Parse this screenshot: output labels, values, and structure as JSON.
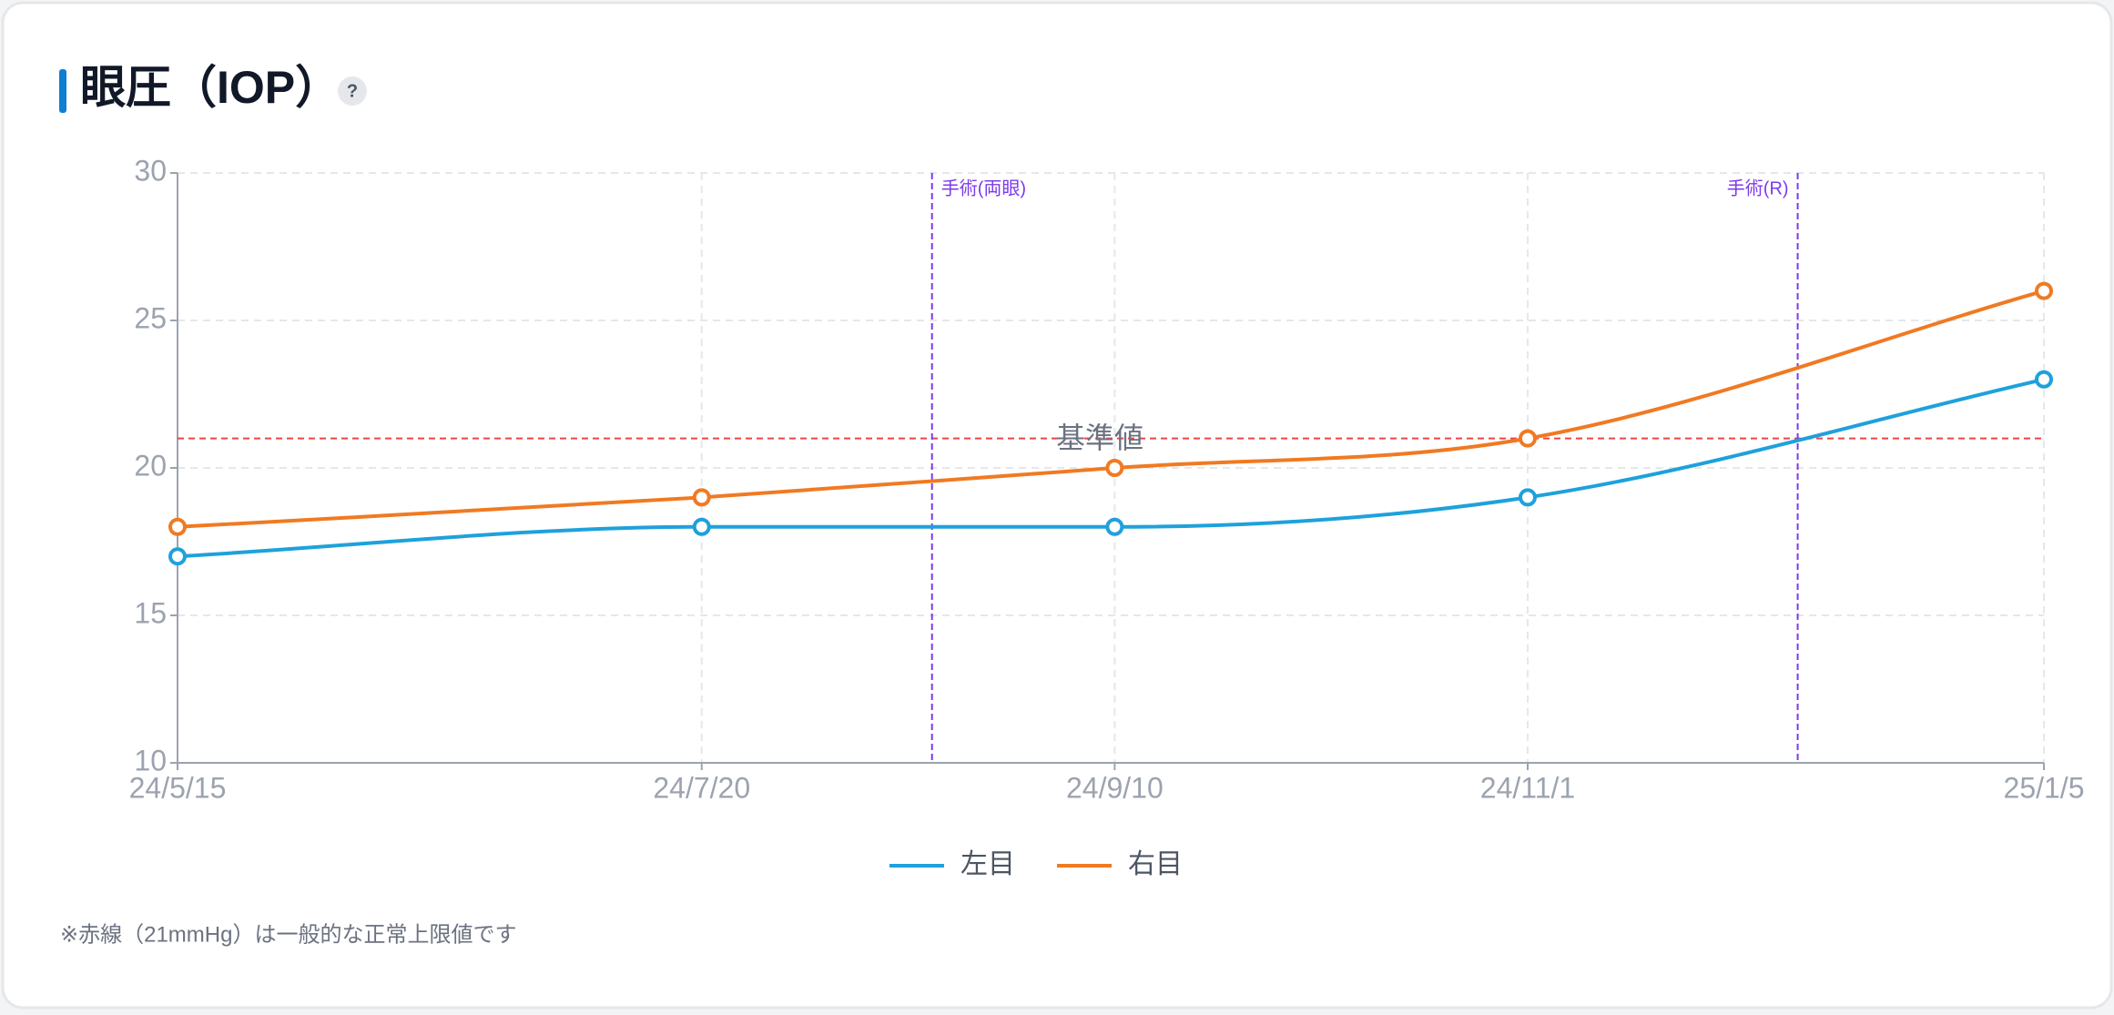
{
  "chart_data": {
    "type": "line",
    "title": "眼圧（IOP）",
    "help_label": "?",
    "x": [
      "24/5/15",
      "24/7/20",
      "24/9/10",
      "24/11/1",
      "25/1/5"
    ],
    "xlim": [
      "24/5/15",
      "25/1/5"
    ],
    "xticks": [
      "24/5/15",
      "24/7/20",
      "24/9/10",
      "24/11/1",
      "25/1/5"
    ],
    "ylim": [
      10,
      30
    ],
    "yticks": [
      10,
      15,
      20,
      25,
      30
    ],
    "grid": true,
    "series": [
      {
        "name": "左目",
        "color": "#1ea1dc",
        "values": [
          17,
          18,
          18,
          19,
          23
        ]
      },
      {
        "name": "右目",
        "color": "#f07a22",
        "values": [
          18,
          19,
          20,
          21,
          26
        ]
      }
    ],
    "reference_line": {
      "label": "基準値",
      "y": 21,
      "color": "#ef4444"
    },
    "annotations": [
      {
        "label": "手術(両眼)",
        "x": "24/8/18",
        "color": "#7c3aed"
      },
      {
        "label": "手術(R)",
        "x": "24/12/5",
        "color": "#7c3aed"
      }
    ],
    "legend": "bottom",
    "note": "※赤線（21mmHg）は一般的な正常上限値です"
  }
}
